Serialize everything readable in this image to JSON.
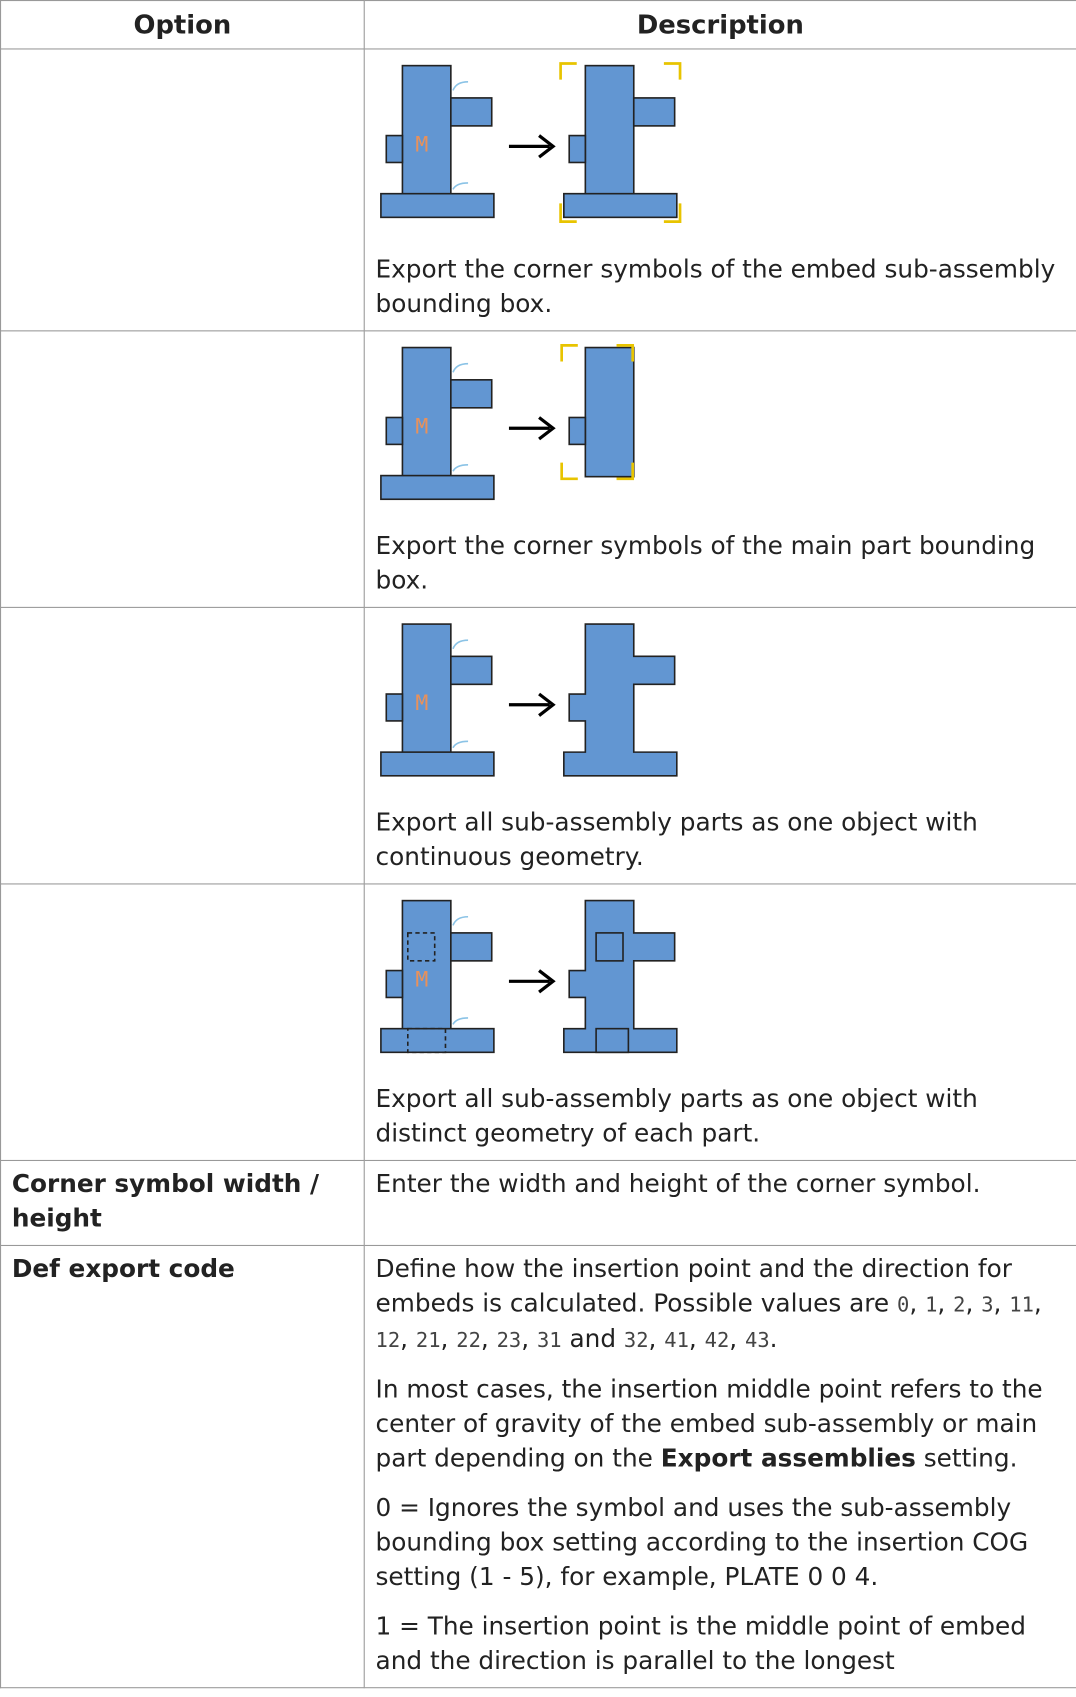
{
  "header": {
    "option": "Option",
    "description": "Description"
  },
  "rows": [
    {
      "option": null,
      "description": [
        "Export the corner symbols of the embed sub-assembly bounding box."
      ]
    },
    {
      "option": null,
      "description": [
        "Export the corner symbols of the main part bounding box."
      ]
    },
    {
      "option": null,
      "description": [
        "Export all sub-assembly parts as one object with continuous geometry."
      ]
    },
    {
      "option": null,
      "description": [
        "Export all sub-assembly parts as one object with distinct geometry of each part."
      ]
    },
    {
      "option": "Corner symbol width / height",
      "description": [
        "Enter the width and height of the corner symbol."
      ]
    },
    {
      "option": "Def export code",
      "description": [
        [
          "Define how the insertion point and the direction for embeds is calculated. Possible values are ",
          "0",
          ", ",
          "1",
          ", ",
          "2",
          ", ",
          "3",
          ", ",
          "11",
          ", ",
          "12",
          ", ",
          "21",
          ", ",
          "22",
          ", ",
          "23",
          ", ",
          "31",
          " and ",
          "32",
          ", ",
          "41",
          ", ",
          "42",
          ", ",
          "43",
          "."
        ],
        [
          "In most cases, the insertion middle point refers to the center of gravity of the embed sub-assembly or main part depending on the ",
          "Export assemblies",
          " setting."
        ],
        "0 = Ignores the symbol and uses the sub-assembly bounding box setting according to the insertion COG setting (1 - 5), for example, PLATE 0 0 4.",
        "1 = The insertion point is the middle point of embed and the direction is parallel to the longest"
      ]
    }
  ]
}
